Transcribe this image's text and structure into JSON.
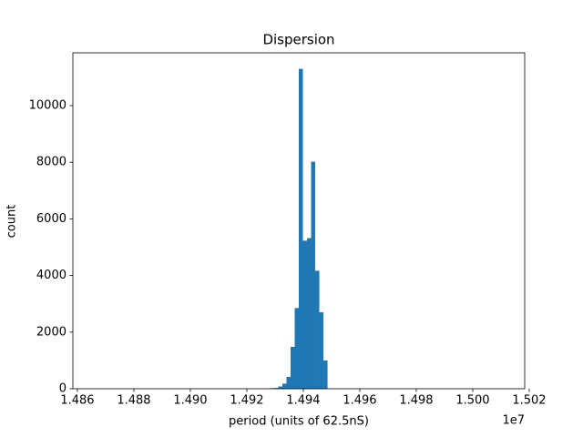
{
  "chart_data": {
    "type": "histogram",
    "title": "Dispersion",
    "x_label": "period (units of 62.5nS)",
    "y_label": "count",
    "x_offset_label": "1e7",
    "color": "#1f77b4",
    "bins": [
      14865700,
      14867154,
      14868608,
      14870062,
      14871516,
      14872970,
      14874424,
      14875878,
      14877332,
      14878786,
      14880240,
      14881694,
      14883148,
      14884602,
      14886056,
      14887510,
      14888964,
      14890418,
      14891872,
      14893326,
      14894780,
      14896234,
      14897688,
      14899142,
      14900596,
      14902050,
      14903504,
      14904958,
      14906412,
      14907866,
      14909320,
      14910774,
      14912228,
      14913682,
      14915136,
      14916590,
      14918044,
      14919498,
      14920952,
      14922406,
      14923860,
      14925314,
      14926768,
      14928222,
      14929676,
      14931130,
      14932584,
      14934038,
      14935492,
      14936946,
      14938400,
      14939854,
      14941308,
      14942762,
      14944216,
      14945670,
      14947124,
      14948578,
      14950032,
      14951486,
      14952940,
      14954394,
      14955848,
      14957302,
      14958756,
      14960210,
      14961664,
      14963118,
      14964572,
      14966026,
      14967480,
      14968934,
      14970388,
      14971842,
      14973296,
      14974750,
      14976204,
      14977658,
      14979112,
      14980566,
      14982020,
      14983474,
      14984928,
      14986382,
      14987836,
      14989290,
      14990744,
      14992198,
      14993652,
      14995106,
      14996560,
      14998014,
      14999468,
      15000922,
      15002376,
      15003830,
      15005284,
      15006738,
      15008192,
      15009646,
      15011100
    ],
    "counts": [
      0,
      0,
      0,
      0,
      0,
      0,
      0,
      0,
      0,
      0,
      0,
      0,
      0,
      0,
      0,
      0,
      0,
      0,
      0,
      0,
      0,
      0,
      0,
      0,
      0,
      0,
      0,
      0,
      0,
      0,
      0,
      0,
      0,
      0,
      0,
      0,
      0,
      0,
      0,
      0,
      0,
      0,
      0,
      20,
      30,
      80,
      180,
      420,
      1480,
      2850,
      11300,
      5230,
      5320,
      8020,
      4170,
      2700,
      1000,
      0,
      0,
      0,
      0,
      0,
      0,
      0,
      0,
      0,
      0,
      0,
      0,
      0,
      0,
      0,
      0,
      0,
      0,
      0,
      0,
      0,
      0,
      0,
      0,
      0,
      0,
      0,
      0,
      0,
      0,
      0,
      0,
      0,
      0,
      0,
      0,
      0,
      0,
      0,
      0,
      0,
      0,
      0
    ],
    "xlim": [
      14858400,
      15018400
    ],
    "xticks": [
      {
        "value": 14860000,
        "label": "1.486"
      },
      {
        "value": 14880000,
        "label": "1.488"
      },
      {
        "value": 14900000,
        "label": "1.490"
      },
      {
        "value": 14920000,
        "label": "1.492"
      },
      {
        "value": 14940000,
        "label": "1.494"
      },
      {
        "value": 14960000,
        "label": "1.496"
      },
      {
        "value": 14980000,
        "label": "1.498"
      },
      {
        "value": 15000000,
        "label": "1.500"
      },
      {
        "value": 15020000,
        "label": "1.502"
      }
    ],
    "ylim": [
      0,
      11865
    ],
    "yticks": [
      0,
      2000,
      4000,
      6000,
      8000,
      10000
    ]
  }
}
